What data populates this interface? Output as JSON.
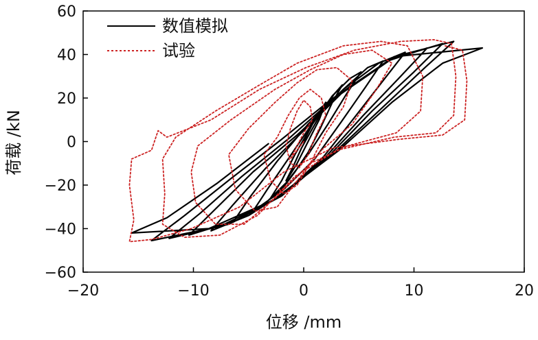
{
  "chart_data": {
    "type": "line",
    "xlabel": "位移 /mm",
    "ylabel": "荷载 /kN",
    "xlim": [
      -20,
      20
    ],
    "ylim": [
      -60,
      60
    ],
    "x_ticks": [
      -20,
      -10,
      0,
      10,
      20
    ],
    "y_ticks": [
      -60,
      -40,
      -20,
      0,
      20,
      40,
      60
    ],
    "x_tick_labels": [
      "−20",
      "−10",
      "0",
      "10",
      "20"
    ],
    "y_tick_labels": [
      "−60",
      "−40",
      "−20",
      "0",
      "20",
      "40",
      "60"
    ],
    "grid": false,
    "legend_position": "top-left",
    "series": [
      {
        "name": "数值模拟",
        "color": "#000000",
        "style": "solid",
        "points": [
          [
            0,
            0
          ],
          [
            0.6,
            6
          ],
          [
            1.1,
            11
          ],
          [
            1.6,
            15
          ],
          [
            2,
            18
          ],
          [
            1.4,
            10
          ],
          [
            0.6,
            2
          ],
          [
            0,
            -4
          ],
          [
            -0.6,
            -10
          ],
          [
            -1.2,
            -15
          ],
          [
            -1.6,
            -18
          ],
          [
            -1,
            -12
          ],
          [
            -0.2,
            -3
          ],
          [
            0.8,
            6
          ],
          [
            1.8,
            15
          ],
          [
            2.8,
            22
          ],
          [
            3.5,
            26
          ],
          [
            2.6,
            18
          ],
          [
            1.5,
            6
          ],
          [
            0.4,
            -5
          ],
          [
            -0.8,
            -14
          ],
          [
            -2,
            -22
          ],
          [
            -3,
            -26
          ],
          [
            -2,
            -18
          ],
          [
            -0.8,
            -6
          ],
          [
            0.8,
            8
          ],
          [
            2.6,
            21
          ],
          [
            4.2,
            29
          ],
          [
            5.2,
            32
          ],
          [
            3.9,
            22
          ],
          [
            2.2,
            8
          ],
          [
            0.4,
            -6
          ],
          [
            -1.6,
            -19
          ],
          [
            -3.4,
            -28
          ],
          [
            -4.6,
            -32
          ],
          [
            -3.3,
            -22
          ],
          [
            -1.4,
            -8
          ],
          [
            1,
            10
          ],
          [
            3.6,
            24
          ],
          [
            5.8,
            34
          ],
          [
            7.2,
            37
          ],
          [
            5.6,
            25
          ],
          [
            3.4,
            9
          ],
          [
            1,
            -8
          ],
          [
            -1.8,
            -22
          ],
          [
            -4.6,
            -32
          ],
          [
            -6.4,
            -37
          ],
          [
            -4.8,
            -25
          ],
          [
            -2.4,
            -9
          ],
          [
            0.4,
            8
          ],
          [
            3.6,
            24
          ],
          [
            6.8,
            36
          ],
          [
            9.2,
            41
          ],
          [
            7.2,
            28
          ],
          [
            4.6,
            11
          ],
          [
            1.8,
            -7
          ],
          [
            -1.6,
            -23
          ],
          [
            -5,
            -34
          ],
          [
            -8.4,
            -41
          ],
          [
            -6.4,
            -29
          ],
          [
            -3.4,
            -12
          ],
          [
            0,
            5
          ],
          [
            3.6,
            23
          ],
          [
            7.6,
            37
          ],
          [
            11.2,
            43
          ],
          [
            8.8,
            30
          ],
          [
            5.4,
            12
          ],
          [
            2,
            -7
          ],
          [
            -1.8,
            -24
          ],
          [
            -6,
            -36
          ],
          [
            -10.4,
            -43
          ],
          [
            -8,
            -31
          ],
          [
            -4.6,
            -14
          ],
          [
            -0.6,
            3
          ],
          [
            3.4,
            22
          ],
          [
            8,
            38
          ],
          [
            12.6,
            45
          ],
          [
            10,
            32
          ],
          [
            6.2,
            14
          ],
          [
            2.4,
            -6
          ],
          [
            -2,
            -25
          ],
          [
            -6.8,
            -38
          ],
          [
            -12.2,
            -44.5
          ],
          [
            -9.4,
            -33
          ],
          [
            -5.6,
            -16
          ],
          [
            -1.2,
            2
          ],
          [
            3,
            21
          ],
          [
            8.2,
            39
          ],
          [
            13.6,
            46
          ],
          [
            11,
            34
          ],
          [
            7,
            15
          ],
          [
            2.8,
            -5
          ],
          [
            -2.4,
            -26
          ],
          [
            -7.6,
            -39
          ],
          [
            -13.8,
            -45.5
          ],
          [
            -10.8,
            -34
          ],
          [
            -6.6,
            -17
          ],
          [
            -2,
            1
          ],
          [
            2.4,
            19
          ],
          [
            8.2,
            39
          ],
          [
            16.2,
            43
          ],
          [
            12.6,
            36
          ],
          [
            8,
            18
          ],
          [
            3.2,
            -4
          ],
          [
            -2.8,
            -27
          ],
          [
            -8.6,
            -40
          ],
          [
            -15.6,
            -42
          ],
          [
            -12.4,
            -35
          ],
          [
            -7.8,
            -19
          ],
          [
            -3.2,
            -1
          ]
        ]
      },
      {
        "name": "试验",
        "color": "#cc2222",
        "style": "dotted",
        "points": [
          [
            0,
            0
          ],
          [
            -0.6,
            -4
          ],
          [
            -1.2,
            -8
          ],
          [
            -0.8,
            -4
          ],
          [
            0,
            4
          ],
          [
            0.8,
            10
          ],
          [
            0.6,
            16
          ],
          [
            0,
            19
          ],
          [
            -0.6,
            14
          ],
          [
            -1.2,
            6
          ],
          [
            -1.6,
            -2
          ],
          [
            -1.2,
            -10
          ],
          [
            -0.4,
            -12
          ],
          [
            0.4,
            -6
          ],
          [
            1.2,
            4
          ],
          [
            2,
            12
          ],
          [
            1.6,
            20
          ],
          [
            0.6,
            24
          ],
          [
            -0.4,
            20
          ],
          [
            -1.4,
            12
          ],
          [
            -2.4,
            2
          ],
          [
            -3.6,
            -6
          ],
          [
            -3,
            -18
          ],
          [
            -1.8,
            -24
          ],
          [
            -0.6,
            -20
          ],
          [
            0.6,
            -10
          ],
          [
            2,
            4
          ],
          [
            3.6,
            16
          ],
          [
            4.4,
            28
          ],
          [
            3,
            34
          ],
          [
            1.2,
            33
          ],
          [
            -0.6,
            27
          ],
          [
            -2.6,
            18
          ],
          [
            -5,
            6
          ],
          [
            -6.8,
            -6
          ],
          [
            -6.2,
            -22
          ],
          [
            -4.4,
            -32
          ],
          [
            -2.4,
            -30
          ],
          [
            -0.6,
            -18
          ],
          [
            1.6,
            -4
          ],
          [
            4.4,
            8
          ],
          [
            6.6,
            24
          ],
          [
            8,
            36
          ],
          [
            6.2,
            42
          ],
          [
            3.6,
            40
          ],
          [
            0.6,
            33
          ],
          [
            -2.6,
            24
          ],
          [
            -6.6,
            10
          ],
          [
            -9.6,
            -2
          ],
          [
            -10.2,
            -14
          ],
          [
            -9.8,
            -28
          ],
          [
            -8,
            -38
          ],
          [
            -5.4,
            -38
          ],
          [
            -2.6,
            -26
          ],
          [
            0.6,
            -10
          ],
          [
            4,
            -2
          ],
          [
            8.4,
            4
          ],
          [
            10.6,
            14
          ],
          [
            10.8,
            30
          ],
          [
            9.4,
            44
          ],
          [
            7,
            46
          ],
          [
            3.6,
            44
          ],
          [
            -0.6,
            36
          ],
          [
            -4,
            26
          ],
          [
            -8,
            14
          ],
          [
            -11.6,
            2
          ],
          [
            -12.8,
            -8
          ],
          [
            -12.6,
            -24
          ],
          [
            -12.8,
            -38
          ],
          [
            -10.8,
            -44
          ],
          [
            -7.6,
            -43
          ],
          [
            -4.2,
            -34
          ],
          [
            -0.8,
            -16
          ],
          [
            3,
            -4
          ],
          [
            8.2,
            2
          ],
          [
            12,
            4
          ],
          [
            13.6,
            12
          ],
          [
            13.8,
            30
          ],
          [
            13.4,
            45
          ],
          [
            11.8,
            46.8
          ],
          [
            8.8,
            46
          ],
          [
            4.6,
            42
          ],
          [
            0.2,
            34
          ],
          [
            -4,
            24
          ],
          [
            -8.4,
            10
          ],
          [
            -12.4,
            2
          ],
          [
            -13.2,
            5
          ],
          [
            -13.8,
            -4
          ],
          [
            -15.6,
            -8
          ],
          [
            -15.8,
            -20
          ],
          [
            -15.4,
            -36
          ],
          [
            -15.8,
            -46
          ],
          [
            -13.8,
            -45
          ],
          [
            -10.2,
            -40
          ],
          [
            -5.8,
            -30
          ],
          [
            -1.8,
            -14
          ],
          [
            2.6,
            -3
          ],
          [
            8.6,
            1
          ],
          [
            12.6,
            3
          ],
          [
            14.6,
            10
          ],
          [
            14.8,
            28
          ],
          [
            14.4,
            42
          ],
          [
            12.8,
            44
          ]
        ]
      }
    ]
  }
}
